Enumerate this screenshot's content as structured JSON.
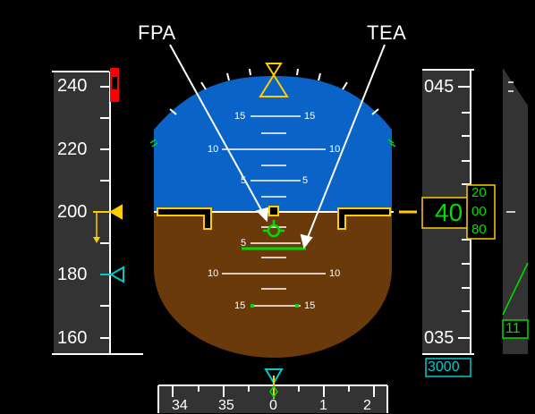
{
  "annotations": {
    "fpa": "FPA",
    "tea": "TEA"
  },
  "speed_tape": {
    "labels": [
      "240",
      "220",
      "200",
      "180",
      "160"
    ],
    "selected_speed": "200",
    "colors": {
      "tape": "#333333",
      "overspeed": "#ff0000",
      "speed_bug": "#ffcc00",
      "target": "#00cccc"
    }
  },
  "altitude_tape": {
    "labels": [
      "045",
      "035"
    ],
    "current_altitude_large": "40",
    "current_altitude_small": "00",
    "roll_up": "20",
    "roll_down": "80",
    "selected_altitude": "3000",
    "vs_readout": "11"
  },
  "attitude": {
    "pitch_labels_up": [
      "15",
      "10",
      "5"
    ],
    "pitch_labels_down": [
      "5",
      "10",
      "15"
    ],
    "colors": {
      "sky": "#0a64c8",
      "ground": "#6b3a0a",
      "symbols": "#ffcc00",
      "fpa": "#00dd00"
    }
  },
  "heading": {
    "labels": [
      "34",
      "35",
      "0",
      "1",
      "2"
    ]
  }
}
